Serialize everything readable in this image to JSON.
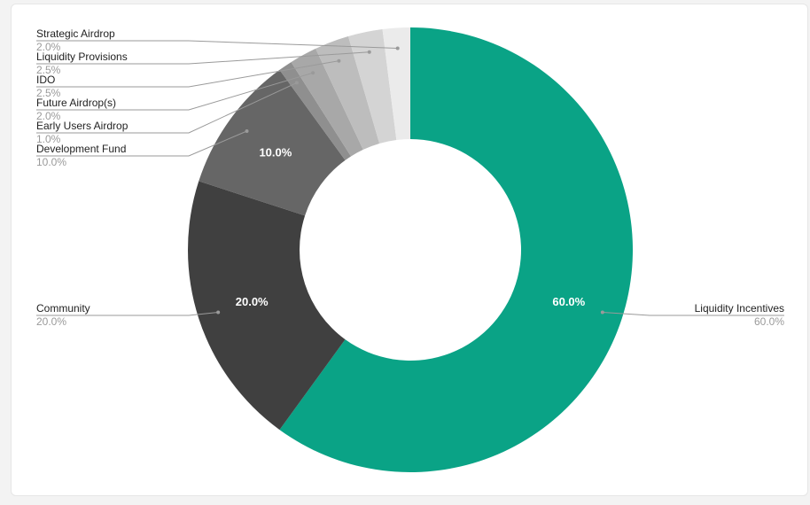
{
  "chart_data": {
    "type": "pie",
    "variant": "donut",
    "categories": [
      "Liquidity Incentives",
      "Community",
      "Development Fund",
      "Early Users Airdrop",
      "Future Airdrop(s)",
      "IDO",
      "Liquidity Provisions",
      "Strategic Airdrop"
    ],
    "values": [
      60.0,
      20.0,
      10.0,
      1.0,
      2.0,
      2.5,
      2.5,
      2.0
    ],
    "value_labels": [
      "60.0%",
      "20.0%",
      "10.0%",
      "1.0%",
      "2.0%",
      "2.5%",
      "2.5%",
      "2.0%"
    ],
    "colors": [
      "#0aa386",
      "#404040",
      "#666666",
      "#8f8f8f",
      "#a8a8a8",
      "#bdbdbd",
      "#d4d4d4",
      "#ebebeb"
    ],
    "legend_placement": "outside labels with leader lines"
  }
}
